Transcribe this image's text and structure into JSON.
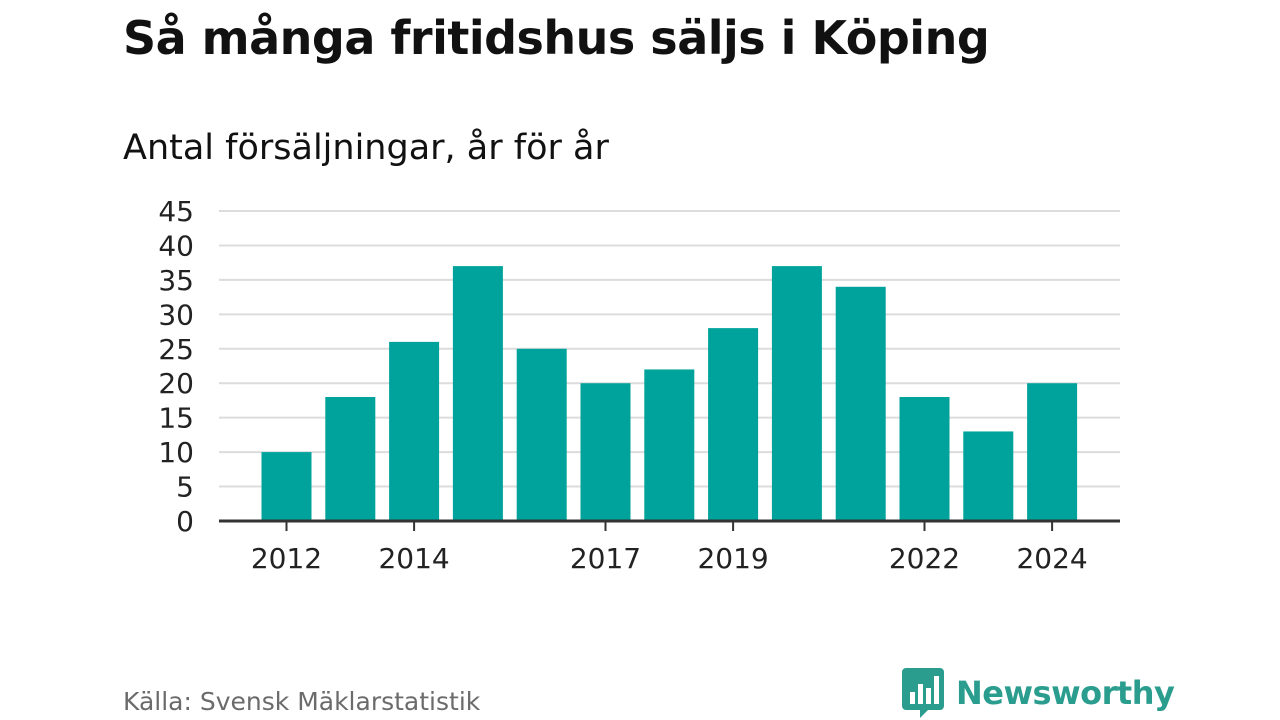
{
  "title": "Så många fritidshus säljs i Köping",
  "subtitle": "Antal försäljningar, år för år",
  "source": "Källa: Svensk Mäklarstatistik",
  "brand": {
    "name": "Newsworthy",
    "color": "#2a9d8f",
    "icon": "bar-chart-speech-bubble-icon"
  },
  "colors": {
    "bar": "#00a39b",
    "grid": "#dcdcdc",
    "axis": "#333333"
  },
  "chart_data": {
    "type": "bar",
    "x": [
      2012,
      2013,
      2014,
      2015,
      2016,
      2017,
      2018,
      2019,
      2020,
      2021,
      2022,
      2023,
      2024
    ],
    "values": [
      10,
      18,
      26,
      37,
      25,
      20,
      22,
      28,
      37,
      34,
      18,
      13,
      20
    ],
    "xtick_labels": [
      "2012",
      "2014",
      "2017",
      "2019",
      "2022",
      "2024"
    ],
    "ytick_labels": [
      "0",
      "5",
      "10",
      "15",
      "20",
      "25",
      "30",
      "35",
      "40",
      "45"
    ],
    "ylim": [
      0,
      45
    ],
    "grid": true,
    "legend": "none"
  }
}
